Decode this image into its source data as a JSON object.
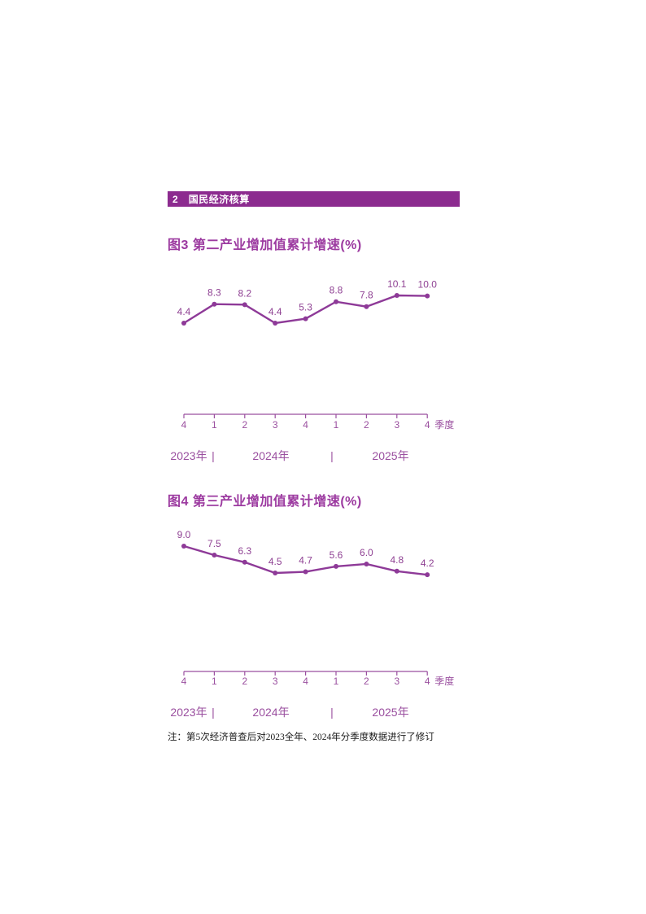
{
  "page": {
    "background": "#ffffff"
  },
  "section_header": {
    "number": "2",
    "title": "国民经济核算"
  },
  "colors": {
    "header_bg": "#8C2B8F",
    "header_text": "#ffffff",
    "title_purple": "#9C3AA0",
    "line_purple": "#8E3A98",
    "data_label_purple": "#8F4193",
    "axis_purple": "#9A4F9F",
    "footnote_text": "#1a1a1a"
  },
  "chart_data": [
    {
      "id": "figure3",
      "type": "line",
      "title": "图3 第二产业增加值累计增速(%)",
      "categories": [
        "4",
        "1",
        "2",
        "3",
        "4",
        "1",
        "2",
        "3",
        "4"
      ],
      "values": [
        4.4,
        8.3,
        8.2,
        4.4,
        5.3,
        8.8,
        7.8,
        10.1,
        10.0
      ],
      "x_axis_unit": "季度",
      "year_labels": [
        "2023年",
        "2024年",
        "2025年"
      ],
      "year_separator": "|",
      "data_labels": true,
      "y_axis_visible": false,
      "grid": false,
      "legend": false
    },
    {
      "id": "figure4",
      "type": "line",
      "title": "图4 第三产业增加值累计增速(%)",
      "categories": [
        "4",
        "1",
        "2",
        "3",
        "4",
        "1",
        "2",
        "3",
        "4"
      ],
      "values": [
        9.0,
        7.5,
        6.3,
        4.5,
        4.7,
        5.6,
        6.0,
        4.8,
        4.2
      ],
      "x_axis_unit": "季度",
      "year_labels": [
        "2023年",
        "2024年",
        "2025年"
      ],
      "year_separator": "|",
      "data_labels": true,
      "y_axis_visible": false,
      "grid": false,
      "legend": false
    }
  ],
  "footnote": "注：第5次经济普查后对2023全年、2024年分季度数据进行了修订"
}
